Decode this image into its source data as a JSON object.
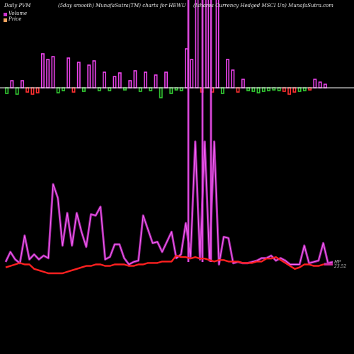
{
  "header": {
    "left": "Daily PVM",
    "center": "(5day smooth) MunafaSutra(TM) charts for HEWU",
    "right": "(Ishares Currency Hedged MSCI Un) MunafaSutra.com"
  },
  "legend": {
    "volume_label": "Volume",
    "price_label": "Price",
    "volume_color": "#cc33cc",
    "price_color": "#f4a460"
  },
  "price_tag": {
    "line1": "HP",
    "line2": "23.52"
  },
  "chart_data": {
    "type": "line",
    "bar_chart": {
      "volume_colors": {
        "up": "#ee44ee",
        "down": "#ff3030",
        "flat": "#33cc33"
      },
      "bars": [
        {
          "v": -8,
          "c": "flat"
        },
        {
          "v": 10,
          "c": "up"
        },
        {
          "v": -9,
          "c": "flat"
        },
        {
          "v": 10,
          "c": "up"
        },
        {
          "v": -6,
          "c": "down"
        },
        {
          "v": -9,
          "c": "down"
        },
        {
          "v": -7,
          "c": "down"
        },
        {
          "v": 48,
          "c": "up"
        },
        {
          "v": 40,
          "c": "up"
        },
        {
          "v": 44,
          "c": "up"
        },
        {
          "v": -7,
          "c": "flat"
        },
        {
          "v": -4,
          "c": "flat"
        },
        {
          "v": 42,
          "c": "up"
        },
        {
          "v": -6,
          "c": "down"
        },
        {
          "v": 36,
          "c": "up"
        },
        {
          "v": -5,
          "c": "flat"
        },
        {
          "v": 32,
          "c": "up"
        },
        {
          "v": 38,
          "c": "up"
        },
        {
          "v": -4,
          "c": "flat"
        },
        {
          "v": 22,
          "c": "up"
        },
        {
          "v": -4,
          "c": "flat"
        },
        {
          "v": 16,
          "c": "up"
        },
        {
          "v": 21,
          "c": "up"
        },
        {
          "v": -3,
          "c": "flat"
        },
        {
          "v": 10,
          "c": "up"
        },
        {
          "v": 24,
          "c": "up"
        },
        {
          "v": -5,
          "c": "flat"
        },
        {
          "v": 22,
          "c": "up"
        },
        {
          "v": -4,
          "c": "flat"
        },
        {
          "v": 18,
          "c": "up"
        },
        {
          "v": -14,
          "c": "flat"
        },
        {
          "v": 22,
          "c": "up"
        },
        {
          "v": -8,
          "c": "flat"
        },
        {
          "v": -3,
          "c": "flat"
        },
        {
          "v": -4,
          "c": "flat"
        },
        {
          "v": 55,
          "c": "up"
        },
        {
          "v": 40,
          "c": "up"
        },
        {
          "v": 125,
          "c": "up"
        },
        {
          "v": -6,
          "c": "down"
        },
        {
          "v": 125,
          "c": "up"
        },
        {
          "v": -6,
          "c": "down"
        },
        {
          "v": 125,
          "c": "up"
        },
        {
          "v": -8,
          "c": "flat"
        },
        {
          "v": 40,
          "c": "up"
        },
        {
          "v": 25,
          "c": "up"
        },
        {
          "v": -6,
          "c": "down"
        },
        {
          "v": 12,
          "c": "up"
        },
        {
          "v": -4,
          "c": "flat"
        },
        {
          "v": -5,
          "c": "flat"
        },
        {
          "v": -7,
          "c": "flat"
        },
        {
          "v": -5,
          "c": "flat"
        },
        {
          "v": -4,
          "c": "flat"
        },
        {
          "v": -3,
          "c": "flat"
        },
        {
          "v": -4,
          "c": "flat"
        },
        {
          "v": -5,
          "c": "down"
        },
        {
          "v": -9,
          "c": "down"
        },
        {
          "v": -6,
          "c": "down"
        },
        {
          "v": -5,
          "c": "flat"
        },
        {
          "v": -4,
          "c": "flat"
        },
        {
          "v": -3,
          "c": "down"
        },
        {
          "v": 12,
          "c": "up"
        },
        {
          "v": 8,
          "c": "up"
        },
        {
          "v": 5,
          "c": "up"
        }
      ]
    },
    "volume_line": [
      0.04,
      0.12,
      0.06,
      0.03,
      0.25,
      0.06,
      0.1,
      0.06,
      0.09,
      0.07,
      0.66,
      0.55,
      0.17,
      0.43,
      0.17,
      0.43,
      0.28,
      0.16,
      0.42,
      0.41,
      0.48,
      0.06,
      0.08,
      0.18,
      0.18,
      0.07,
      0.02,
      0.04,
      0.05,
      0.41,
      0.3,
      0.19,
      0.2,
      0.12,
      0.2,
      0.28,
      0.07,
      0.1,
      0.35,
      0.08,
      1.0,
      0.06,
      1.0,
      0.05,
      1.0,
      0.02,
      0.24,
      0.23,
      0.03,
      0.04,
      0.03,
      0.03,
      0.04,
      0.05,
      0.07,
      0.07,
      0.09,
      0.05,
      0.07,
      0.05,
      0.02,
      0.02,
      0.02,
      0.17,
      0.03,
      0.04,
      0.05,
      0.19,
      0.03,
      0.04
    ],
    "price_line": [
      0.04,
      0.05,
      0.06,
      0.07,
      0.06,
      0.06,
      0.03,
      0.02,
      0.01,
      0.0,
      0.0,
      0.0,
      0.0,
      0.01,
      0.02,
      0.03,
      0.04,
      0.05,
      0.05,
      0.06,
      0.06,
      0.05,
      0.05,
      0.06,
      0.06,
      0.06,
      0.05,
      0.05,
      0.06,
      0.06,
      0.07,
      0.07,
      0.07,
      0.08,
      0.08,
      0.08,
      0.12,
      0.11,
      0.11,
      0.1,
      0.11,
      0.1,
      0.1,
      0.09,
      0.08,
      0.09,
      0.09,
      0.08,
      0.08,
      0.08,
      0.07,
      0.07,
      0.07,
      0.08,
      0.08,
      0.1,
      0.1,
      0.11,
      0.09,
      0.07,
      0.05,
      0.03,
      0.04,
      0.06,
      0.06,
      0.05,
      0.05,
      0.06,
      0.06,
      0.06
    ],
    "colors": {
      "volume_line": "#cc33cc",
      "volume_line_bright": "#ff66ff",
      "price_line": "#ff2020",
      "baseline": "#ffffff"
    }
  }
}
